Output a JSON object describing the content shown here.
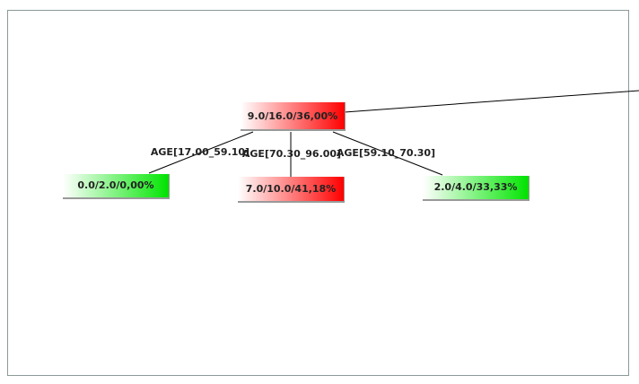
{
  "nodes": [
    {
      "label": "9.0/16.0/36,00%"
    },
    {
      "label": "0.0/2.0/0,00%"
    },
    {
      "label": "7.0/10.0/41,18%"
    },
    {
      "label": "2.0/4.0/33,33%"
    }
  ],
  "edges": [
    {
      "label": "AGE[17.00_59.10]"
    },
    {
      "label": "AGE[70.30_96.00]"
    },
    {
      "label": "AGE[59.10_70.30]"
    }
  ]
}
